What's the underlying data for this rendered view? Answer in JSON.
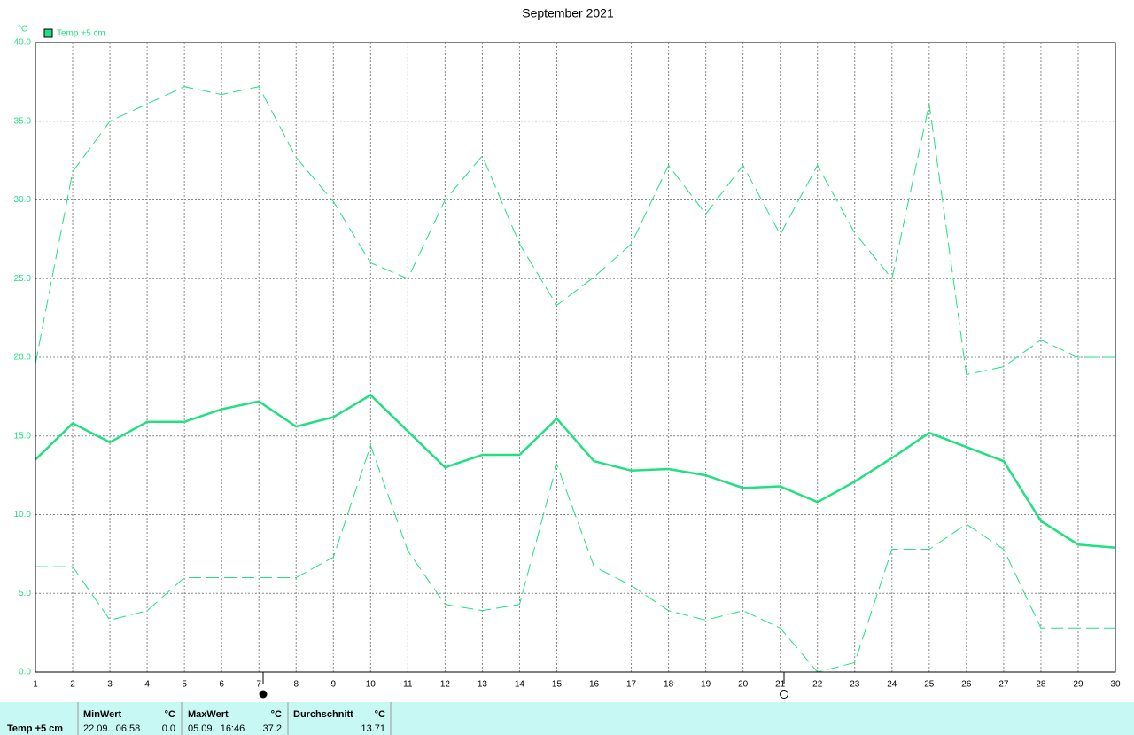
{
  "chart_data": {
    "type": "line",
    "title": "September 2021",
    "y_label": "°C",
    "x": [
      1,
      2,
      3,
      4,
      5,
      6,
      7,
      8,
      9,
      10,
      11,
      12,
      13,
      14,
      15,
      16,
      17,
      18,
      19,
      20,
      21,
      22,
      23,
      24,
      25,
      26,
      27,
      28,
      29,
      30
    ],
    "xlim": [
      1,
      30
    ],
    "xticks": [
      1,
      2,
      3,
      4,
      5,
      6,
      7,
      8,
      9,
      10,
      11,
      12,
      13,
      14,
      15,
      16,
      17,
      18,
      19,
      20,
      21,
      22,
      23,
      24,
      25,
      26,
      27,
      28,
      29,
      30
    ],
    "ylim": [
      0,
      40
    ],
    "yticks": [
      {
        "value": 0,
        "label": "0.0"
      },
      {
        "value": 5,
        "label": "5.0"
      },
      {
        "value": 10,
        "label": "10.0"
      },
      {
        "value": 15,
        "label": "15.0"
      },
      {
        "value": 20,
        "label": "20.0"
      },
      {
        "value": 25,
        "label": "25.0"
      },
      {
        "value": 30,
        "label": "30.0"
      },
      {
        "value": 35,
        "label": "35.0"
      },
      {
        "value": 40,
        "label": "40.0"
      }
    ],
    "grid": true,
    "legend": "top-left",
    "series": [
      {
        "name": "Temp +5 cm",
        "color": "#20e080",
        "style": "solid",
        "values": [
          13.5,
          15.8,
          14.6,
          15.9,
          15.9,
          16.7,
          17.2,
          15.6,
          16.2,
          17.6,
          15.3,
          13.0,
          13.8,
          13.8,
          16.1,
          13.4,
          12.8,
          12.9,
          12.5,
          11.7,
          11.8,
          10.8,
          12.1,
          13.6,
          15.2,
          14.3,
          13.4,
          9.6,
          8.1,
          7.9
        ]
      },
      {
        "color": "#20e080",
        "style": "dashed",
        "values": [
          19.6,
          31.8,
          35.0,
          36.1,
          37.2,
          36.7,
          37.2,
          32.7,
          29.9,
          26.0,
          25.0,
          30.0,
          32.8,
          27.2,
          23.3,
          25.1,
          27.2,
          32.2,
          29.1,
          32.2,
          27.8,
          32.2,
          27.9,
          25.0,
          36.1,
          18.9,
          19.4,
          21.1,
          20.0,
          20.0
        ]
      },
      {
        "color": "#20e080",
        "style": "dashed",
        "values": [
          6.7,
          6.7,
          3.3,
          3.9,
          6.0,
          6.0,
          6.0,
          6.0,
          7.3,
          14.4,
          7.7,
          4.3,
          3.9,
          4.3,
          13.2,
          6.7,
          5.5,
          3.9,
          3.3,
          3.9,
          2.8,
          0.0,
          0.6,
          7.8,
          7.8,
          9.4,
          7.8,
          2.8,
          2.8,
          2.8
        ]
      }
    ]
  },
  "stats": {
    "sensor": "Temp +5 cm",
    "min": {
      "label": "MinWert",
      "unit": "°C",
      "time": "22.09.  06:58",
      "value": "0.0"
    },
    "max": {
      "label": "MaxWert",
      "unit": "°C",
      "time": "05.09.  16:46",
      "value": "37.2"
    },
    "avg": {
      "label": "Durchschnitt",
      "unit": "°C",
      "value": "13.71"
    }
  }
}
